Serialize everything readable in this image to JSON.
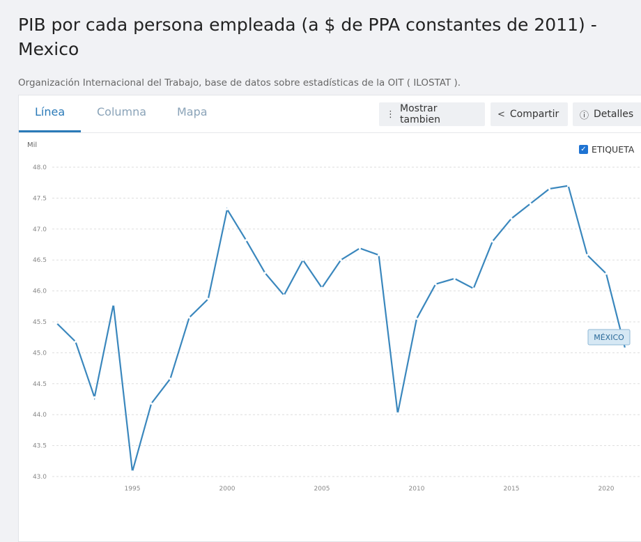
{
  "page": {
    "title": "PIB por cada persona empleada (a $ de PPA constantes de 2011) - Mexico",
    "source": "Organización Internacional del Trabajo, base de datos sobre estadísticas de la OIT ( ILOSTAT )."
  },
  "tabs": [
    {
      "label": "Línea",
      "active": true
    },
    {
      "label": "Columna",
      "active": false
    },
    {
      "label": "Mapa",
      "active": false
    }
  ],
  "toolbar": {
    "show_also": {
      "label": "Mostrar tambien",
      "icon": "vertical-dots-icon"
    },
    "share": {
      "label": "Compartir",
      "icon": "share-icon"
    },
    "details": {
      "label": "Detalles",
      "icon": "info-icon"
    }
  },
  "label_toggle": {
    "label": "ETIQUETA",
    "checked": true
  },
  "colors": {
    "line": "#3a87bd",
    "accent": "#2a7ab8",
    "checkbox": "#1f73d2"
  },
  "chart_data": {
    "type": "line",
    "ylabel": "Mil",
    "ylim": [
      43.0,
      48.0
    ],
    "yticks": [
      "43.0",
      "43.5",
      "44.0",
      "44.5",
      "45.0",
      "45.5",
      "46.0",
      "46.5",
      "47.0",
      "47.5",
      "48.0"
    ],
    "xticks": [
      "1995",
      "2000",
      "2005",
      "2010",
      "2015",
      "2020"
    ],
    "grid": true,
    "series": [
      {
        "name": "MÉXICO",
        "x": [
          1991,
          1992,
          1993,
          1994,
          1995,
          1996,
          1997,
          1998,
          1999,
          2000,
          2001,
          2002,
          2003,
          2004,
          2005,
          2006,
          2007,
          2008,
          2009,
          2010,
          2011,
          2012,
          2013,
          2014,
          2015,
          2016,
          2017,
          2018,
          2019,
          2020,
          2021
        ],
        "values": [
          45.48,
          45.18,
          44.28,
          45.78,
          43.08,
          44.18,
          44.58,
          45.57,
          45.87,
          47.32,
          46.82,
          46.29,
          45.93,
          46.5,
          46.05,
          46.5,
          46.69,
          46.58,
          44.02,
          45.55,
          46.11,
          46.2,
          46.04,
          46.8,
          47.17,
          47.41,
          47.65,
          47.7,
          46.58,
          46.28,
          45.07
        ]
      }
    ]
  }
}
